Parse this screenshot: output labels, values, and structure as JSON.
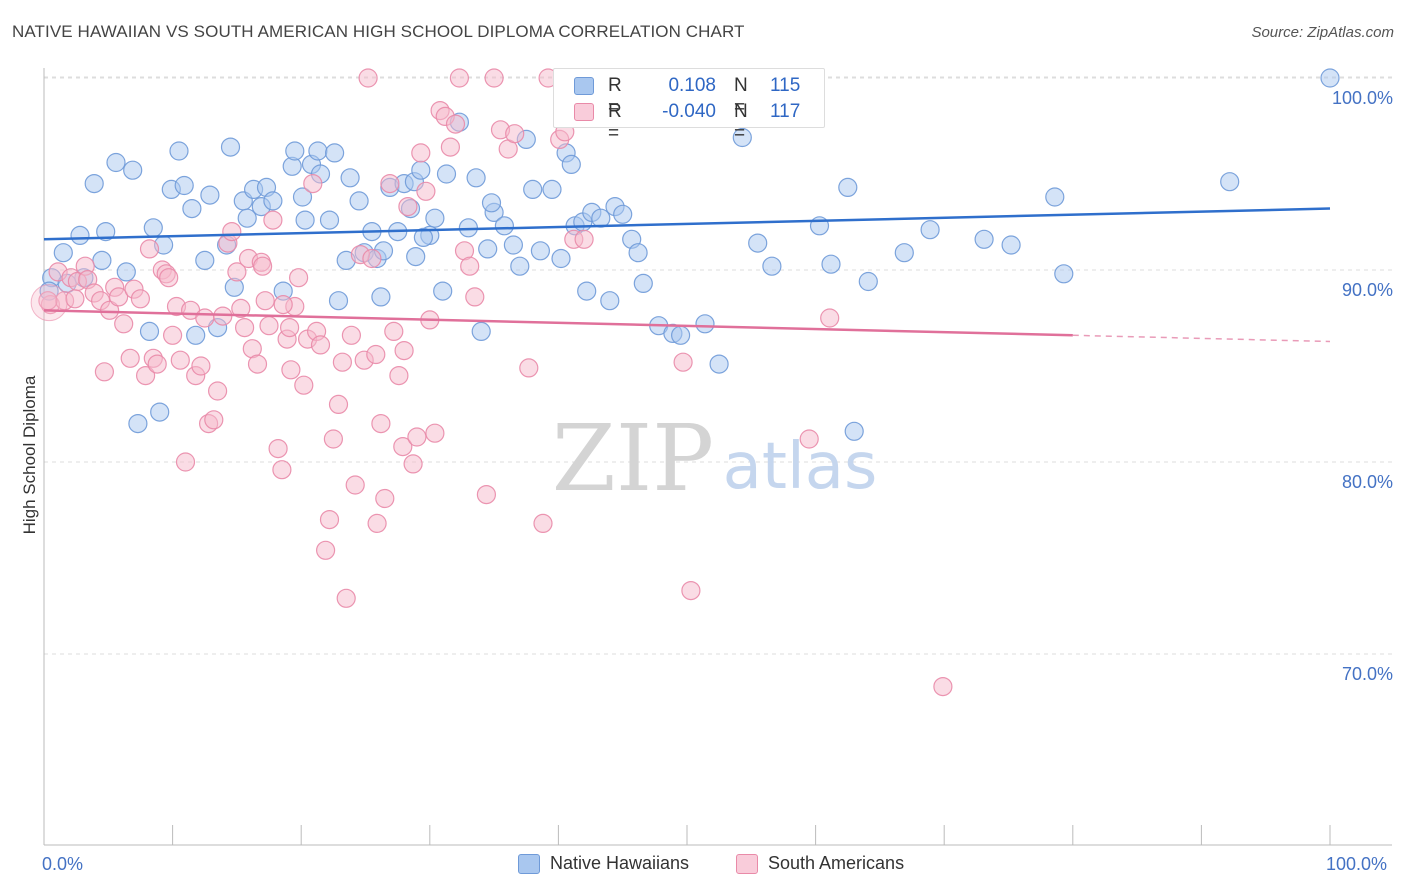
{
  "title": "NATIVE HAWAIIAN VS SOUTH AMERICAN HIGH SCHOOL DIPLOMA CORRELATION CHART",
  "source": "Source: ZipAtlas.com",
  "watermark": {
    "zip": "ZIP",
    "atlas": "atlas"
  },
  "colors": {
    "blue_fill": "#a9c7ef",
    "blue_stroke": "#6f9ad8",
    "blue_line": "#2f6fcc",
    "pink_fill": "#f5b9cc",
    "pink_stroke": "#e98aa8",
    "pink_line": "#e0709a",
    "grid": "#dddddd",
    "tick_label": "#4472c4"
  },
  "legend_stats": [
    {
      "r_label": "R =",
      "r_value": "0.108",
      "n_label": "N =",
      "n_value": "115",
      "color": "blue"
    },
    {
      "r_label": "R =",
      "r_value": "-0.040",
      "n_label": "N =",
      "n_value": "117",
      "color": "pink"
    }
  ],
  "legend_bottom": [
    {
      "label": "Native Hawaiians",
      "color": "blue"
    },
    {
      "label": "South Americans",
      "color": "pink"
    }
  ],
  "chart_data": {
    "type": "scatter",
    "title": "NATIVE HAWAIIAN VS SOUTH AMERICAN HIGH SCHOOL DIPLOMA CORRELATION CHART",
    "xlabel": "",
    "ylabel": "High School Diploma",
    "xlim": [
      0,
      100
    ],
    "ylim": [
      61,
      101.5
    ],
    "x_tick_labels": [
      "0.0%",
      "100.0%"
    ],
    "y_ticks": [
      70,
      80,
      90,
      100
    ],
    "y_tick_labels": [
      "70.0%",
      "80.0%",
      "90.0%",
      "100.0%"
    ],
    "grid": true,
    "legend_placement": "top-center",
    "series": [
      {
        "name": "Native Hawaiians",
        "color": "#6f9ad8",
        "trend": {
          "x": [
            0,
            100
          ],
          "y": [
            91.6,
            93.2
          ]
        },
        "points": [
          [
            0.6,
            89.6
          ],
          [
            1.5,
            90.9
          ],
          [
            1.8,
            89.3
          ],
          [
            2.8,
            91.8
          ],
          [
            3.9,
            94.5
          ],
          [
            4.5,
            90.5
          ],
          [
            4.8,
            92.0
          ],
          [
            5.6,
            95.6
          ],
          [
            6.4,
            89.9
          ],
          [
            6.9,
            95.2
          ],
          [
            8.2,
            86.8
          ],
          [
            8.5,
            92.2
          ],
          [
            9.0,
            82.6
          ],
          [
            9.3,
            91.3
          ],
          [
            9.9,
            94.2
          ],
          [
            10.5,
            96.2
          ],
          [
            10.9,
            94.4
          ],
          [
            11.5,
            93.2
          ],
          [
            11.8,
            86.6
          ],
          [
            12.5,
            90.5
          ],
          [
            12.9,
            93.9
          ],
          [
            13.5,
            87.0
          ],
          [
            14.2,
            91.3
          ],
          [
            14.5,
            96.4
          ],
          [
            14.8,
            89.1
          ],
          [
            15.5,
            93.6
          ],
          [
            15.8,
            92.7
          ],
          [
            16.3,
            94.2
          ],
          [
            16.9,
            93.3
          ],
          [
            17.3,
            94.3
          ],
          [
            17.8,
            93.6
          ],
          [
            18.6,
            88.9
          ],
          [
            19.3,
            95.4
          ],
          [
            19.5,
            96.2
          ],
          [
            20.1,
            93.8
          ],
          [
            20.3,
            92.6
          ],
          [
            20.8,
            95.5
          ],
          [
            21.3,
            96.2
          ],
          [
            21.5,
            95.0
          ],
          [
            22.2,
            92.6
          ],
          [
            22.9,
            88.4
          ],
          [
            23.5,
            90.5
          ],
          [
            23.8,
            94.8
          ],
          [
            24.5,
            93.6
          ],
          [
            24.9,
            90.9
          ],
          [
            25.5,
            92.0
          ],
          [
            25.9,
            90.6
          ],
          [
            26.4,
            91.0
          ],
          [
            26.9,
            94.3
          ],
          [
            27.5,
            92.0
          ],
          [
            28.0,
            94.5
          ],
          [
            28.5,
            93.2
          ],
          [
            28.8,
            94.6
          ],
          [
            29.3,
            95.2
          ],
          [
            30.0,
            91.8
          ],
          [
            30.4,
            92.7
          ],
          [
            31.0,
            88.9
          ],
          [
            31.3,
            95.0
          ],
          [
            32.3,
            97.7
          ],
          [
            33.0,
            92.2
          ],
          [
            33.6,
            94.8
          ],
          [
            34.0,
            86.8
          ],
          [
            34.5,
            91.1
          ],
          [
            35.0,
            93.0
          ],
          [
            35.8,
            92.3
          ],
          [
            36.5,
            91.3
          ],
          [
            37.0,
            90.2
          ],
          [
            37.5,
            96.8
          ],
          [
            38.0,
            94.2
          ],
          [
            38.6,
            91.0
          ],
          [
            39.5,
            94.2
          ],
          [
            40.2,
            90.6
          ],
          [
            40.6,
            96.1
          ],
          [
            41.3,
            92.3
          ],
          [
            41.9,
            92.5
          ],
          [
            42.2,
            88.9
          ],
          [
            42.6,
            93.0
          ],
          [
            43.3,
            92.7
          ],
          [
            44.0,
            88.4
          ],
          [
            44.4,
            93.3
          ],
          [
            45.0,
            92.9
          ],
          [
            45.7,
            91.6
          ],
          [
            46.2,
            90.9
          ],
          [
            46.6,
            89.3
          ],
          [
            47.8,
            87.1
          ],
          [
            48.9,
            86.7
          ],
          [
            49.5,
            86.6
          ],
          [
            51.4,
            87.2
          ],
          [
            52.5,
            85.1
          ],
          [
            54.3,
            96.9
          ],
          [
            55.3,
            98.7
          ],
          [
            55.5,
            91.4
          ],
          [
            56.6,
            90.2
          ],
          [
            60.3,
            92.3
          ],
          [
            61.2,
            90.3
          ],
          [
            62.5,
            94.3
          ],
          [
            63.0,
            81.6
          ],
          [
            64.1,
            89.4
          ],
          [
            66.9,
            90.9
          ],
          [
            68.9,
            92.1
          ],
          [
            73.1,
            91.6
          ],
          [
            75.2,
            91.3
          ],
          [
            78.6,
            93.8
          ],
          [
            79.3,
            89.8
          ],
          [
            92.2,
            94.6
          ],
          [
            100.0,
            100.0
          ],
          [
            0.4,
            88.9
          ],
          [
            3.1,
            89.6
          ],
          [
            7.3,
            82.0
          ],
          [
            26.2,
            88.6
          ],
          [
            28.9,
            90.7
          ],
          [
            29.5,
            91.7
          ],
          [
            34.8,
            93.5
          ],
          [
            41.0,
            95.5
          ],
          [
            22.6,
            96.1
          ]
        ]
      },
      {
        "name": "South Americans",
        "color": "#e98aa8",
        "trend": {
          "x": [
            0,
            80
          ],
          "y": [
            87.9,
            86.6
          ]
        },
        "points": [
          [
            0.5,
            88.2
          ],
          [
            1.1,
            89.9
          ],
          [
            1.6,
            88.4
          ],
          [
            2.1,
            89.6
          ],
          [
            2.6,
            89.4
          ],
          [
            3.2,
            90.2
          ],
          [
            3.4,
            89.5
          ],
          [
            3.9,
            88.8
          ],
          [
            4.4,
            88.4
          ],
          [
            4.7,
            84.7
          ],
          [
            5.1,
            87.9
          ],
          [
            5.5,
            89.1
          ],
          [
            5.8,
            88.6
          ],
          [
            6.2,
            87.2
          ],
          [
            6.7,
            85.4
          ],
          [
            7.0,
            89.0
          ],
          [
            7.5,
            88.5
          ],
          [
            7.9,
            84.5
          ],
          [
            8.2,
            91.1
          ],
          [
            8.5,
            85.4
          ],
          [
            8.8,
            85.1
          ],
          [
            9.2,
            90.0
          ],
          [
            9.5,
            89.8
          ],
          [
            10.0,
            86.6
          ],
          [
            10.3,
            88.1
          ],
          [
            10.6,
            85.3
          ],
          [
            11.0,
            80.0
          ],
          [
            11.4,
            87.9
          ],
          [
            11.8,
            84.5
          ],
          [
            12.2,
            85.0
          ],
          [
            12.5,
            87.5
          ],
          [
            12.8,
            82.0
          ],
          [
            13.2,
            82.2
          ],
          [
            13.5,
            83.7
          ],
          [
            13.9,
            87.6
          ],
          [
            14.3,
            91.4
          ],
          [
            14.6,
            92.0
          ],
          [
            15.0,
            89.9
          ],
          [
            15.3,
            88.0
          ],
          [
            15.6,
            87.0
          ],
          [
            15.9,
            90.6
          ],
          [
            16.2,
            85.9
          ],
          [
            16.6,
            85.1
          ],
          [
            16.9,
            90.4
          ],
          [
            17.2,
            88.4
          ],
          [
            17.5,
            87.1
          ],
          [
            17.8,
            92.6
          ],
          [
            18.2,
            80.7
          ],
          [
            18.5,
            79.6
          ],
          [
            18.9,
            86.4
          ],
          [
            19.2,
            84.8
          ],
          [
            19.5,
            88.1
          ],
          [
            19.8,
            89.6
          ],
          [
            20.2,
            84.0
          ],
          [
            20.5,
            86.4
          ],
          [
            20.9,
            94.5
          ],
          [
            21.2,
            86.8
          ],
          [
            21.5,
            86.1
          ],
          [
            21.9,
            75.4
          ],
          [
            22.2,
            77.0
          ],
          [
            22.5,
            81.2
          ],
          [
            22.9,
            83.0
          ],
          [
            23.2,
            85.2
          ],
          [
            23.5,
            72.9
          ],
          [
            23.9,
            86.6
          ],
          [
            24.2,
            78.8
          ],
          [
            24.6,
            90.8
          ],
          [
            24.9,
            85.3
          ],
          [
            25.2,
            100.0
          ],
          [
            25.5,
            90.6
          ],
          [
            25.9,
            76.8
          ],
          [
            26.2,
            82.0
          ],
          [
            26.5,
            78.1
          ],
          [
            26.9,
            94.5
          ],
          [
            27.2,
            86.8
          ],
          [
            27.6,
            84.5
          ],
          [
            27.9,
            80.8
          ],
          [
            28.3,
            93.3
          ],
          [
            28.7,
            79.9
          ],
          [
            29.0,
            81.3
          ],
          [
            29.3,
            96.1
          ],
          [
            29.7,
            94.1
          ],
          [
            30.0,
            87.4
          ],
          [
            30.4,
            81.5
          ],
          [
            30.8,
            98.3
          ],
          [
            31.2,
            98.0
          ],
          [
            31.6,
            96.4
          ],
          [
            32.0,
            97.6
          ],
          [
            32.3,
            100.0
          ],
          [
            32.7,
            91.0
          ],
          [
            33.1,
            90.2
          ],
          [
            33.5,
            88.6
          ],
          [
            34.4,
            78.3
          ],
          [
            35.0,
            100.0
          ],
          [
            35.5,
            97.3
          ],
          [
            36.1,
            96.3
          ],
          [
            36.6,
            97.1
          ],
          [
            37.7,
            84.9
          ],
          [
            38.8,
            76.8
          ],
          [
            39.2,
            100.0
          ],
          [
            40.1,
            96.8
          ],
          [
            40.5,
            97.2
          ],
          [
            41.2,
            91.6
          ],
          [
            42.0,
            91.6
          ],
          [
            49.7,
            85.2
          ],
          [
            50.3,
            73.3
          ],
          [
            59.5,
            81.2
          ],
          [
            61.1,
            87.5
          ],
          [
            69.9,
            68.3
          ],
          [
            0.3,
            88.4
          ],
          [
            2.4,
            88.5
          ],
          [
            9.7,
            89.6
          ],
          [
            17.0,
            90.2
          ],
          [
            18.6,
            88.2
          ],
          [
            19.1,
            87.0
          ],
          [
            25.8,
            85.6
          ],
          [
            28.0,
            85.8
          ]
        ]
      }
    ]
  }
}
